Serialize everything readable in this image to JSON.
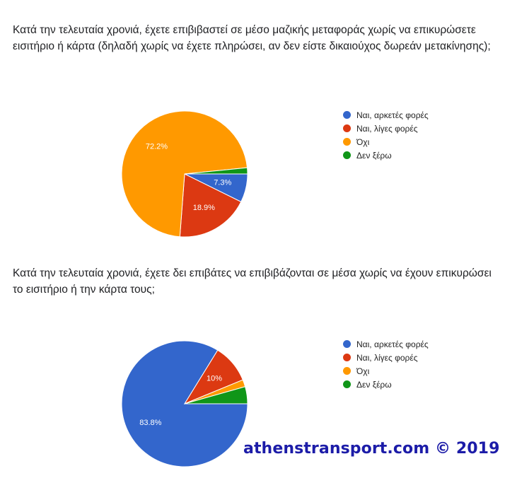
{
  "questions": [
    {
      "text": "Κατά την τελευταία χρονιά, έχετε επιβιβαστεί σε μέσο μαζικής μεταφοράς χωρίς να επικυρώσετε εισιτήριο ή κάρτα (δηλαδή χωρίς να έχετε πληρώσει, αν δεν είστε δικαιούχος δωρεάν μετακίνησης);"
    },
    {
      "text": "Κατά την τελευταία χρονιά, έχετε δει επιβάτες να επιβιβάζονται σε μέσα χωρίς να έχουν επικυρώσει το εισιτήριο ή την κάρτα τους;"
    }
  ],
  "chart_data": [
    {
      "type": "pie",
      "title": "",
      "categories": [
        "Ναι, αρκετές φορές",
        "Ναι, λίγες φορές",
        "Όχι",
        "Δεν ξέρω"
      ],
      "values": [
        7.3,
        18.9,
        72.2,
        1.6
      ],
      "colors": [
        "#3366cc",
        "#dc3912",
        "#ff9900",
        "#109618"
      ],
      "slice_labels": [
        "7.3%",
        "18.9%",
        "72.2%",
        ""
      ],
      "legend_position": "right"
    },
    {
      "type": "pie",
      "title": "",
      "categories": [
        "Ναι, αρκετές φορές",
        "Ναι, λίγες φορές",
        "Όχι",
        "Δεν ξέρω"
      ],
      "values": [
        83.8,
        10,
        1.8,
        4.4
      ],
      "colors": [
        "#3366cc",
        "#dc3912",
        "#ff9900",
        "#109618"
      ],
      "slice_labels": [
        "83.8%",
        "10%",
        "",
        ""
      ],
      "legend_position": "right"
    }
  ],
  "watermark": "athenstransport.com © 2019"
}
